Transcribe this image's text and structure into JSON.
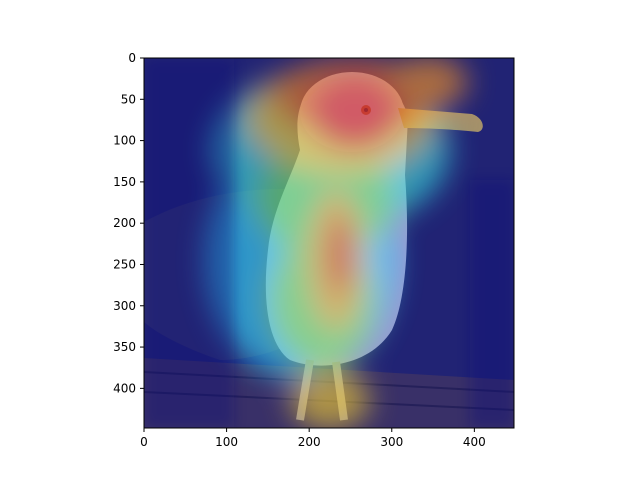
{
  "image": {
    "subject": "seagull-photo-with-attention-heatmap-overlay",
    "colormap": "jet",
    "overlay_alpha": 0.55,
    "colors": {
      "background": "#ffffff",
      "axis": "#000000",
      "water_dark": "#22264f",
      "pier": "#463c3c"
    }
  },
  "axes": {
    "xlim": [
      0,
      448
    ],
    "ylim": [
      448,
      0
    ],
    "x_ticks": [
      {
        "value": 0,
        "label": "0"
      },
      {
        "value": 100,
        "label": "100"
      },
      {
        "value": 200,
        "label": "200"
      },
      {
        "value": 300,
        "label": "300"
      },
      {
        "value": 400,
        "label": "400"
      }
    ],
    "y_ticks": [
      {
        "value": 0,
        "label": "0"
      },
      {
        "value": 50,
        "label": "50"
      },
      {
        "value": 100,
        "label": "100"
      },
      {
        "value": 150,
        "label": "150"
      },
      {
        "value": 200,
        "label": "200"
      },
      {
        "value": 250,
        "label": "250"
      },
      {
        "value": 300,
        "label": "300"
      },
      {
        "value": 350,
        "label": "350"
      },
      {
        "value": 400,
        "label": "400"
      }
    ]
  }
}
